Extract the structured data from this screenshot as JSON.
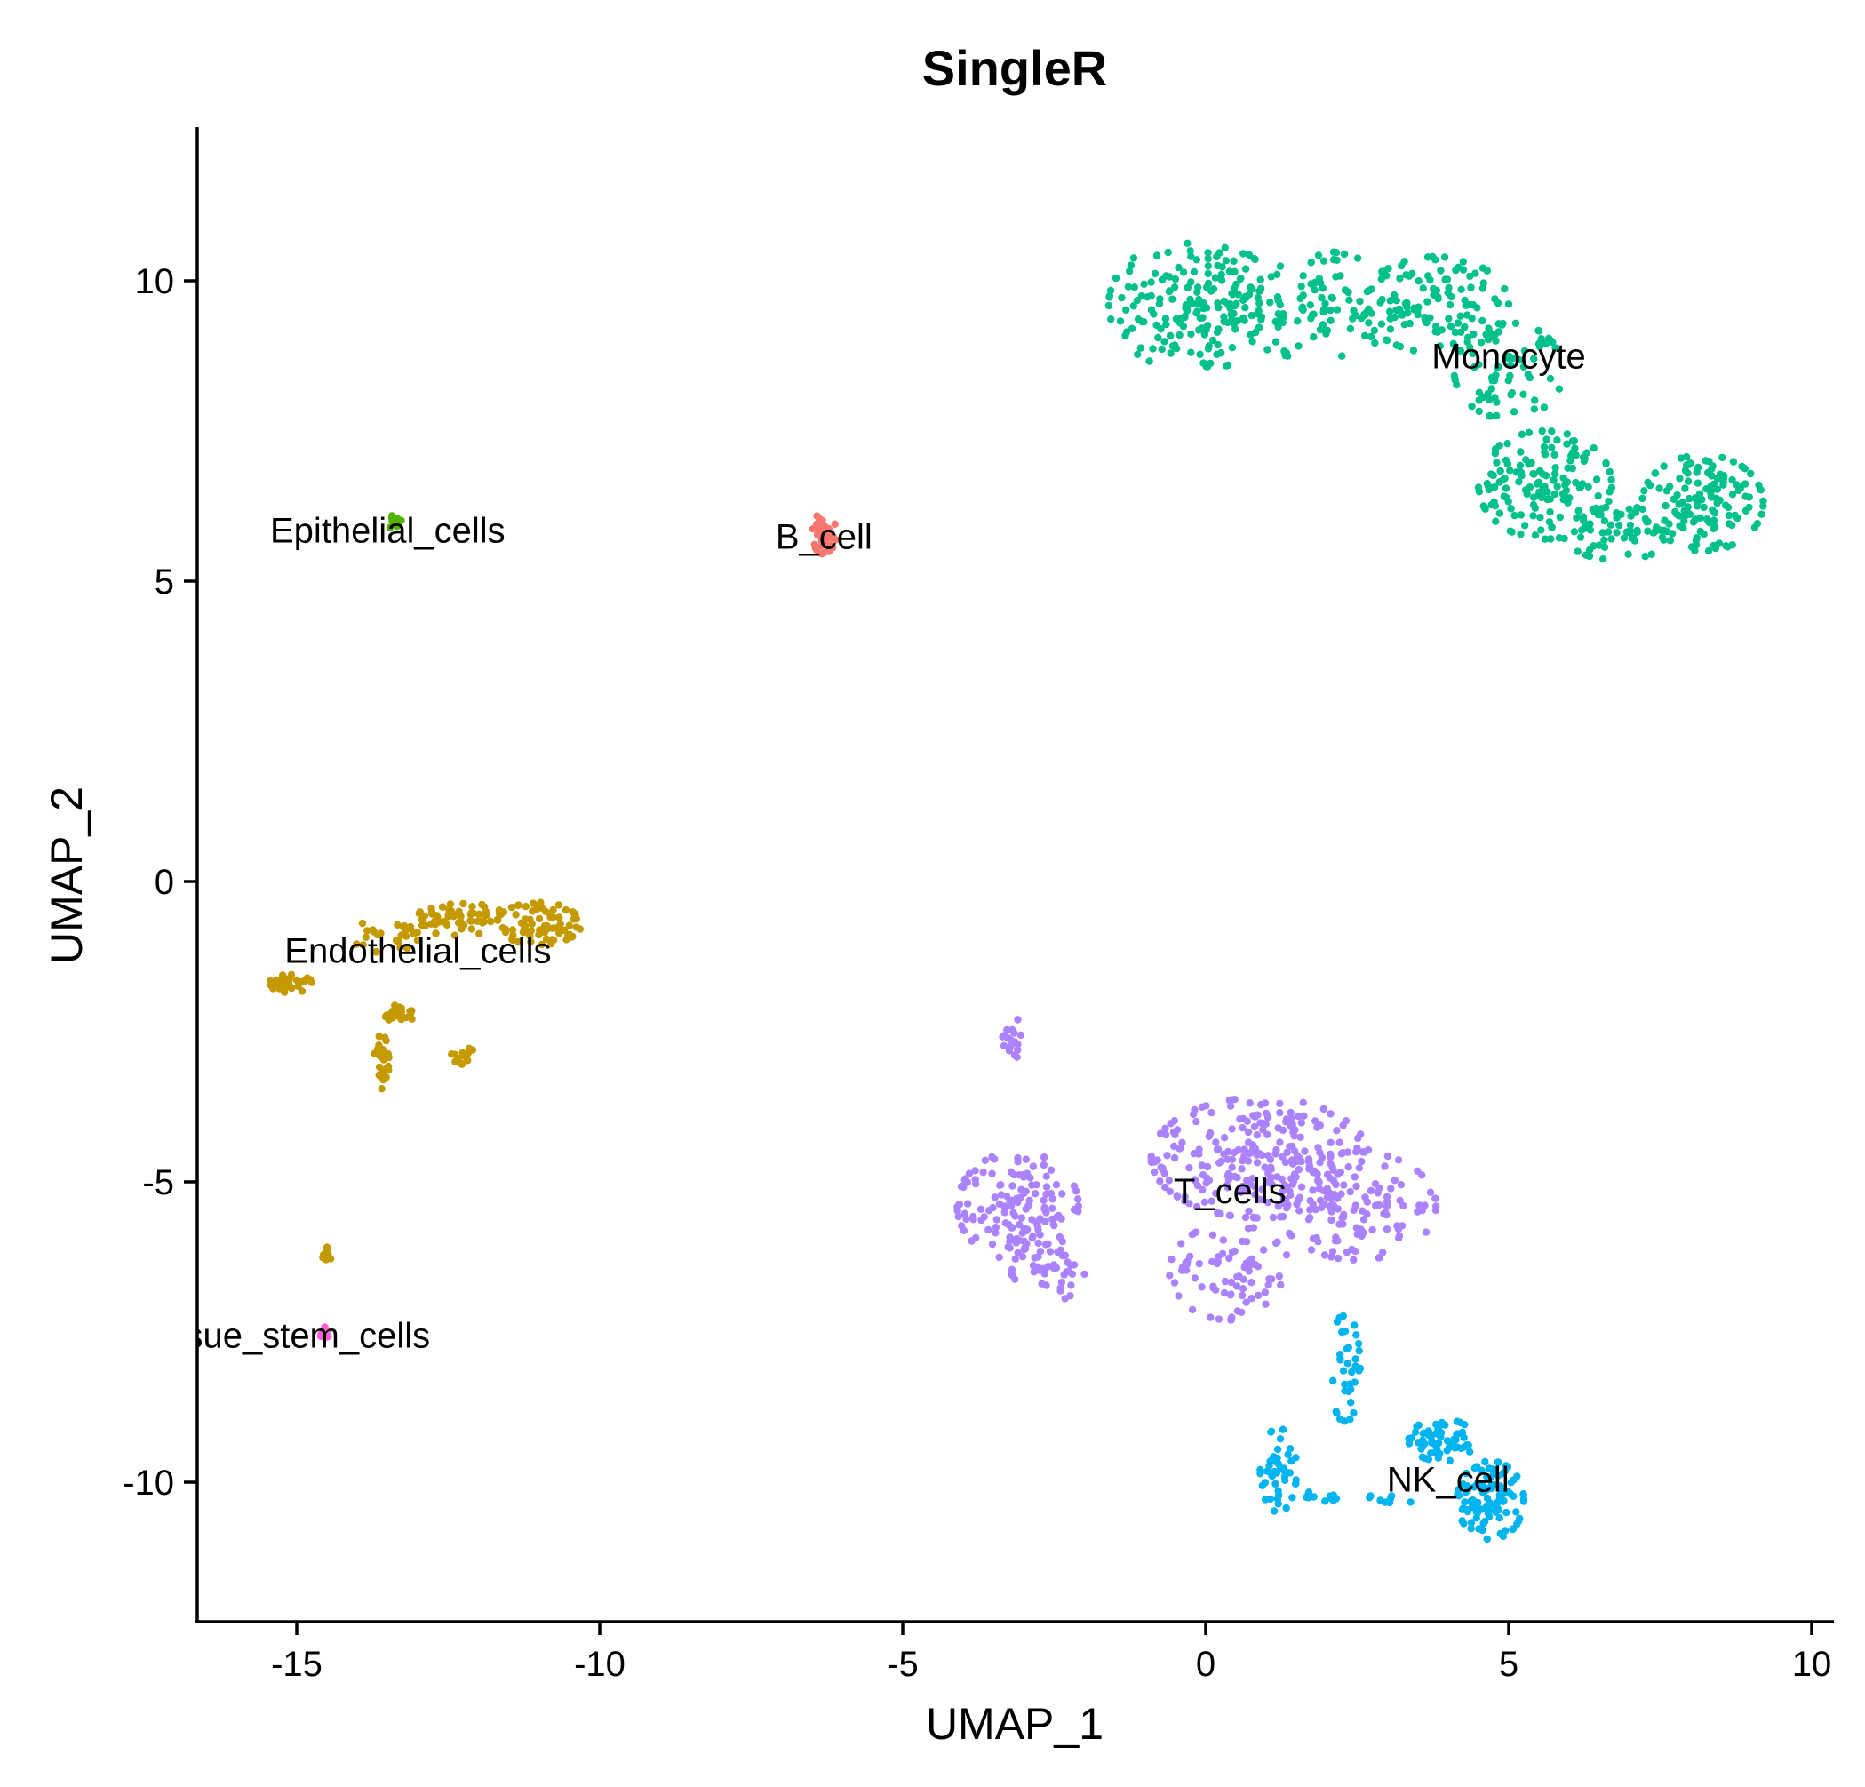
{
  "chart_data": {
    "type": "scatter",
    "title": "SingleR",
    "xlabel": "UMAP_1",
    "ylabel": "UMAP_2",
    "xlim": [
      -16.7,
      10.3
    ],
    "ylim": [
      -12.3,
      12.6
    ],
    "xticks": [
      -15,
      -10,
      -5,
      0,
      5,
      10
    ],
    "xtick_labels": [
      "-15",
      "-10",
      "-5",
      "0",
      "5",
      "10"
    ],
    "yticks": [
      -10,
      -5,
      0,
      5,
      10
    ],
    "ytick_labels": [
      "-10",
      "-5",
      "0",
      "5",
      "10"
    ],
    "grid": false,
    "legend": "none",
    "series": [
      {
        "name": "Monocyte",
        "label": "Monocyte",
        "label_pos": [
          5,
          8.7
        ],
        "color": "#00C08B",
        "blobs": [
          {
            "cx": -0.2,
            "cy": 9.6,
            "rx": 1.4,
            "ry": 1.1,
            "n": 170
          },
          {
            "cx": 1.8,
            "cy": 9.6,
            "rx": 1.4,
            "ry": 0.9,
            "n": 120
          },
          {
            "cx": 3.8,
            "cy": 9.6,
            "rx": 1.2,
            "ry": 0.8,
            "n": 110
          },
          {
            "cx": 5.0,
            "cy": 8.5,
            "rx": 0.9,
            "ry": 0.8,
            "n": 70
          },
          {
            "cx": 5.6,
            "cy": 6.6,
            "rx": 1.1,
            "ry": 0.9,
            "n": 150
          },
          {
            "cx": 8.2,
            "cy": 6.3,
            "rx": 1.0,
            "ry": 0.8,
            "n": 130
          },
          {
            "cx": 6.8,
            "cy": 5.8,
            "rx": 0.9,
            "ry": 0.45,
            "n": 60
          }
        ]
      },
      {
        "name": "T_cells",
        "label": "T_cells",
        "label_pos": [
          0.4,
          -5.2
        ],
        "color": "#AB82FF",
        "blobs": [
          {
            "cx": -3.1,
            "cy": -5.4,
            "rx": 1.0,
            "ry": 0.9,
            "n": 150
          },
          {
            "cx": -2.6,
            "cy": -6.5,
            "rx": 0.6,
            "ry": 0.5,
            "n": 40
          },
          {
            "cx": 0.9,
            "cy": -4.6,
            "rx": 1.8,
            "ry": 1.0,
            "n": 260
          },
          {
            "cx": 2.5,
            "cy": -5.4,
            "rx": 1.3,
            "ry": 0.9,
            "n": 120
          },
          {
            "cx": 0.4,
            "cy": -6.5,
            "rx": 1.0,
            "ry": 0.8,
            "n": 80
          },
          {
            "cx": -3.2,
            "cy": -2.6,
            "rx": 0.15,
            "ry": 0.4,
            "n": 18
          }
        ]
      },
      {
        "name": "NK_cell",
        "label": "NK_cell",
        "label_pos": [
          4.0,
          -10.0
        ],
        "color": "#00B4EF",
        "blobs": [
          {
            "cx": 4.7,
            "cy": -10.3,
            "rx": 0.55,
            "ry": 0.65,
            "n": 110
          },
          {
            "cx": 3.9,
            "cy": -9.3,
            "rx": 0.55,
            "ry": 0.35,
            "n": 60
          },
          {
            "cx": 2.3,
            "cy": -8.1,
            "rx": 0.25,
            "ry": 0.9,
            "n": 35
          },
          {
            "cx": 1.2,
            "cy": -9.8,
            "rx": 0.3,
            "ry": 0.7,
            "n": 45
          },
          {
            "cx": 1.8,
            "cy": -10.2,
            "rx": 0.6,
            "ry": 0.12,
            "n": 12
          },
          {
            "cx": 3.0,
            "cy": -10.3,
            "rx": 0.4,
            "ry": 0.1,
            "n": 8
          }
        ]
      },
      {
        "name": "Endothelial_cells",
        "label": "Endothelial_cells",
        "label_pos": [
          -13.0,
          -1.2
        ],
        "color": "#C49A00",
        "blobs": [
          {
            "cx": -11.0,
            "cy": -0.7,
            "rx": 0.7,
            "ry": 0.35,
            "n": 80
          },
          {
            "cx": -12.3,
            "cy": -0.6,
            "rx": 0.7,
            "ry": 0.3,
            "n": 60
          },
          {
            "cx": -13.4,
            "cy": -0.9,
            "rx": 0.7,
            "ry": 0.3,
            "n": 30
          },
          {
            "cx": -15.1,
            "cy": -1.7,
            "rx": 0.35,
            "ry": 0.15,
            "n": 35
          },
          {
            "cx": -13.3,
            "cy": -2.2,
            "rx": 0.25,
            "ry": 0.15,
            "n": 20
          },
          {
            "cx": -13.6,
            "cy": -3.0,
            "rx": 0.12,
            "ry": 0.45,
            "n": 25
          },
          {
            "cx": -12.2,
            "cy": -2.9,
            "rx": 0.25,
            "ry": 0.15,
            "n": 15
          },
          {
            "cx": -14.5,
            "cy": -6.2,
            "rx": 0.08,
            "ry": 0.12,
            "n": 12
          }
        ]
      },
      {
        "name": "B_cell",
        "label": "B_cell",
        "label_pos": [
          -6.3,
          5.7
        ],
        "color": "#F8766D",
        "blobs": [
          {
            "cx": -6.3,
            "cy": 5.8,
            "rx": 0.2,
            "ry": 0.35,
            "n": 40
          }
        ]
      },
      {
        "name": "Epithelial_cells",
        "label": "Epithelial_cells",
        "label_pos": [
          -13.5,
          5.8
        ],
        "color": "#53B400",
        "blobs": [
          {
            "cx": -13.4,
            "cy": 5.9,
            "rx": 0.2,
            "ry": 0.2,
            "n": 10
          }
        ]
      },
      {
        "name": "Tissue_stem_cells",
        "label": "Tissue_stem_cells",
        "label_pos": [
          -15.2,
          -7.6
        ],
        "color": "#FB61D7",
        "blobs": [
          {
            "cx": -14.5,
            "cy": -7.5,
            "rx": 0.15,
            "ry": 0.1,
            "n": 10
          }
        ]
      }
    ]
  }
}
